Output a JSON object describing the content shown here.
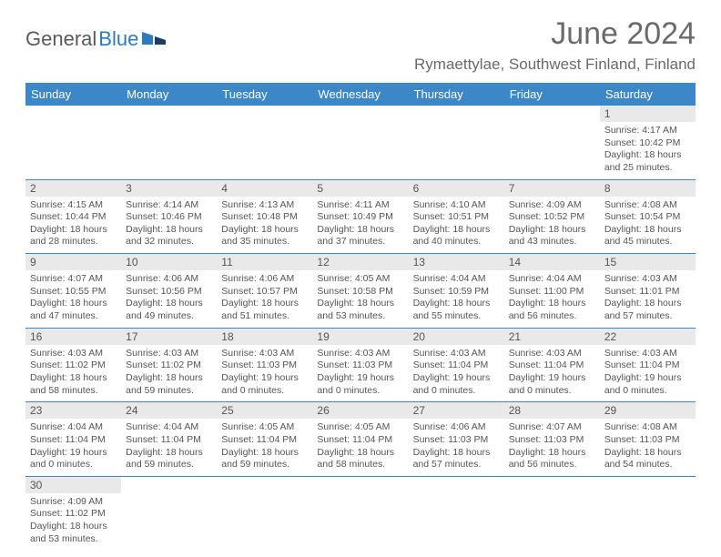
{
  "logo": {
    "text1": "General",
    "text2": "Blue"
  },
  "title": "June 2024",
  "location": "Rymaettylae, Southwest Finland, Finland",
  "colors": {
    "header_bg": "#3b87c8",
    "header_fg": "#ffffff",
    "daynum_bg": "#e9e9e9",
    "text": "#555555",
    "rule": "#3b87c8"
  },
  "dayNames": [
    "Sunday",
    "Monday",
    "Tuesday",
    "Wednesday",
    "Thursday",
    "Friday",
    "Saturday"
  ],
  "weeks": [
    [
      null,
      null,
      null,
      null,
      null,
      null,
      {
        "n": "1",
        "sr": "4:17 AM",
        "ss": "10:42 PM",
        "dl": "18 hours and 25 minutes."
      }
    ],
    [
      {
        "n": "2",
        "sr": "4:15 AM",
        "ss": "10:44 PM",
        "dl": "18 hours and 28 minutes."
      },
      {
        "n": "3",
        "sr": "4:14 AM",
        "ss": "10:46 PM",
        "dl": "18 hours and 32 minutes."
      },
      {
        "n": "4",
        "sr": "4:13 AM",
        "ss": "10:48 PM",
        "dl": "18 hours and 35 minutes."
      },
      {
        "n": "5",
        "sr": "4:11 AM",
        "ss": "10:49 PM",
        "dl": "18 hours and 37 minutes."
      },
      {
        "n": "6",
        "sr": "4:10 AM",
        "ss": "10:51 PM",
        "dl": "18 hours and 40 minutes."
      },
      {
        "n": "7",
        "sr": "4:09 AM",
        "ss": "10:52 PM",
        "dl": "18 hours and 43 minutes."
      },
      {
        "n": "8",
        "sr": "4:08 AM",
        "ss": "10:54 PM",
        "dl": "18 hours and 45 minutes."
      }
    ],
    [
      {
        "n": "9",
        "sr": "4:07 AM",
        "ss": "10:55 PM",
        "dl": "18 hours and 47 minutes."
      },
      {
        "n": "10",
        "sr": "4:06 AM",
        "ss": "10:56 PM",
        "dl": "18 hours and 49 minutes."
      },
      {
        "n": "11",
        "sr": "4:06 AM",
        "ss": "10:57 PM",
        "dl": "18 hours and 51 minutes."
      },
      {
        "n": "12",
        "sr": "4:05 AM",
        "ss": "10:58 PM",
        "dl": "18 hours and 53 minutes."
      },
      {
        "n": "13",
        "sr": "4:04 AM",
        "ss": "10:59 PM",
        "dl": "18 hours and 55 minutes."
      },
      {
        "n": "14",
        "sr": "4:04 AM",
        "ss": "11:00 PM",
        "dl": "18 hours and 56 minutes."
      },
      {
        "n": "15",
        "sr": "4:03 AM",
        "ss": "11:01 PM",
        "dl": "18 hours and 57 minutes."
      }
    ],
    [
      {
        "n": "16",
        "sr": "4:03 AM",
        "ss": "11:02 PM",
        "dl": "18 hours and 58 minutes."
      },
      {
        "n": "17",
        "sr": "4:03 AM",
        "ss": "11:02 PM",
        "dl": "18 hours and 59 minutes."
      },
      {
        "n": "18",
        "sr": "4:03 AM",
        "ss": "11:03 PM",
        "dl": "19 hours and 0 minutes."
      },
      {
        "n": "19",
        "sr": "4:03 AM",
        "ss": "11:03 PM",
        "dl": "19 hours and 0 minutes."
      },
      {
        "n": "20",
        "sr": "4:03 AM",
        "ss": "11:04 PM",
        "dl": "19 hours and 0 minutes."
      },
      {
        "n": "21",
        "sr": "4:03 AM",
        "ss": "11:04 PM",
        "dl": "19 hours and 0 minutes."
      },
      {
        "n": "22",
        "sr": "4:03 AM",
        "ss": "11:04 PM",
        "dl": "19 hours and 0 minutes."
      }
    ],
    [
      {
        "n": "23",
        "sr": "4:04 AM",
        "ss": "11:04 PM",
        "dl": "19 hours and 0 minutes."
      },
      {
        "n": "24",
        "sr": "4:04 AM",
        "ss": "11:04 PM",
        "dl": "18 hours and 59 minutes."
      },
      {
        "n": "25",
        "sr": "4:05 AM",
        "ss": "11:04 PM",
        "dl": "18 hours and 59 minutes."
      },
      {
        "n": "26",
        "sr": "4:05 AM",
        "ss": "11:04 PM",
        "dl": "18 hours and 58 minutes."
      },
      {
        "n": "27",
        "sr": "4:06 AM",
        "ss": "11:03 PM",
        "dl": "18 hours and 57 minutes."
      },
      {
        "n": "28",
        "sr": "4:07 AM",
        "ss": "11:03 PM",
        "dl": "18 hours and 56 minutes."
      },
      {
        "n": "29",
        "sr": "4:08 AM",
        "ss": "11:03 PM",
        "dl": "18 hours and 54 minutes."
      }
    ],
    [
      {
        "n": "30",
        "sr": "4:09 AM",
        "ss": "11:02 PM",
        "dl": "18 hours and 53 minutes."
      },
      null,
      null,
      null,
      null,
      null,
      null
    ]
  ],
  "labels": {
    "sunrise": "Sunrise:",
    "sunset": "Sunset:",
    "daylight": "Daylight:"
  }
}
